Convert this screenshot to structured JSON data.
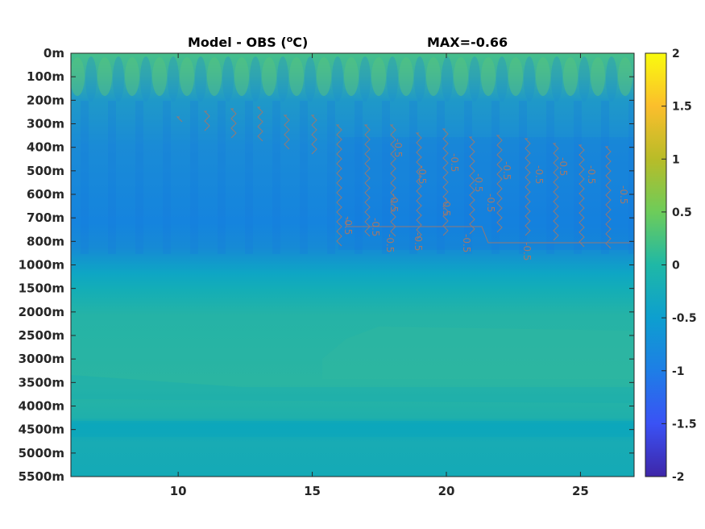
{
  "title_left": "Model - OBS (",
  "title_sup": "o",
  "title_unit": "C)",
  "title_right": "MAX=-0.66",
  "chart_data": {
    "type": "heatmap",
    "x_ticks": [
      10,
      15,
      20,
      25
    ],
    "x_range": [
      6,
      27
    ],
    "y_tick_labels": [
      "0m",
      "100m",
      "200m",
      "300m",
      "400m",
      "500m",
      "600m",
      "700m",
      "800m",
      "1000m",
      "1500m",
      "2000m",
      "2500m",
      "3000m",
      "3500m",
      "4000m",
      "4500m",
      "5000m",
      "5500m"
    ],
    "colorbar_ticks": [
      2,
      1.5,
      1,
      0.5,
      0,
      -0.5,
      -1,
      -1.5,
      -2
    ],
    "colorbar_range": [
      -2,
      2
    ],
    "colormap": "parula",
    "contour_level": -0.5,
    "contour_color": "#a0786a",
    "contour_labels": [
      "-0.5",
      "-0.5",
      "-0.5",
      "-0.5",
      "-0.5",
      "-0.5",
      "-0.5",
      "-0.5",
      "-0.5",
      "-0.5",
      "-0.5",
      "-0.5",
      "-0.5",
      "-0.5",
      "-0.5",
      "-0.5",
      "-0.5",
      "-0.5"
    ],
    "field_by_depth": [
      {
        "depth": "0m",
        "value": 0.15
      },
      {
        "depth": "100m",
        "value": 0.05
      },
      {
        "depth": "200m",
        "value": -0.45
      },
      {
        "depth": "300m",
        "value": -0.5
      },
      {
        "depth": "400m",
        "value": -0.55
      },
      {
        "depth": "500m",
        "value": -0.6
      },
      {
        "depth": "600m",
        "value": -0.6
      },
      {
        "depth": "700m",
        "value": -0.58
      },
      {
        "depth": "800m",
        "value": -0.5
      },
      {
        "depth": "1000m",
        "value": -0.2
      },
      {
        "depth": "1500m",
        "value": 0.05
      },
      {
        "depth": "2000m",
        "value": 0.15
      },
      {
        "depth": "2500m",
        "value": 0.2
      },
      {
        "depth": "3000m",
        "value": 0.2
      },
      {
        "depth": "3500m",
        "value": 0.15
      },
      {
        "depth": "4000m",
        "value": 0.1
      },
      {
        "depth": "4500m",
        "value": 0.0
      },
      {
        "depth": "5000m",
        "value": 0.05
      },
      {
        "depth": "5500m",
        "value": 0.05
      }
    ]
  }
}
